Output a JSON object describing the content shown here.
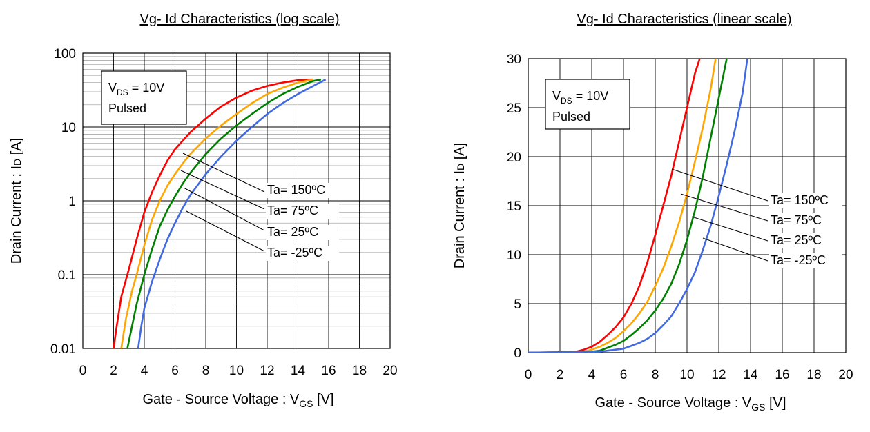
{
  "chart_data": [
    {
      "type": "line",
      "title": "Vg- Id Characteristics (log scale)",
      "xlabel": {
        "main": "Gate - Source Voltage : V",
        "sub": "GS",
        "tail": " [V]"
      },
      "ylabel": {
        "main": "Drain Current : I",
        "sub": "D",
        "tail": " [A]"
      },
      "xlim": [
        0,
        20
      ],
      "ylim": [
        0.01,
        100
      ],
      "yscale": "log",
      "grid": true,
      "x_ticks": [
        "0",
        "2",
        "4",
        "6",
        "8",
        "10",
        "12",
        "14",
        "16",
        "18",
        "20"
      ],
      "y_ticks": [
        "0.01",
        "0.1",
        "1",
        "10",
        "100"
      ],
      "annotation_box": {
        "vds_main": "V",
        "vds_sub": "DS",
        "vds_tail": " = 10V",
        "line2": "Pulsed"
      },
      "series": [
        {
          "name": "Ta= 150ºC",
          "color": "#ff0000",
          "x": [
            2.0,
            2.2,
            2.5,
            3.0,
            3.5,
            4.0,
            4.5,
            5.0,
            5.5,
            6.0,
            6.5,
            7.0,
            8.0,
            9.0,
            10.0,
            11.0,
            12.0,
            13.0,
            14.0,
            15.0
          ],
          "y": [
            0.01,
            0.02,
            0.05,
            0.12,
            0.3,
            0.7,
            1.3,
            2.2,
            3.5,
            5.0,
            6.5,
            8.5,
            13,
            19,
            25,
            31,
            36,
            40,
            43,
            44
          ]
        },
        {
          "name": "Ta= 75ºC",
          "color": "#ffa500",
          "x": [
            2.5,
            2.8,
            3.2,
            3.5,
            4.0,
            4.5,
            5.0,
            5.5,
            6.0,
            6.5,
            7.0,
            8.0,
            9.0,
            10.0,
            11.0,
            12.0,
            13.0,
            14.0,
            15.0
          ],
          "y": [
            0.01,
            0.025,
            0.06,
            0.1,
            0.25,
            0.55,
            1.0,
            1.6,
            2.3,
            3.2,
            4.3,
            7,
            10.5,
            15,
            21,
            28,
            34,
            40,
            44
          ]
        },
        {
          "name": "Ta= 25ºC",
          "color": "#008000",
          "x": [
            2.9,
            3.2,
            3.5,
            4.0,
            4.5,
            5.0,
            5.5,
            6.0,
            6.5,
            7.0,
            8.0,
            9.0,
            10.0,
            11.0,
            12.0,
            13.0,
            14.0,
            15.0,
            15.5
          ],
          "y": [
            0.01,
            0.02,
            0.04,
            0.1,
            0.22,
            0.45,
            0.75,
            1.15,
            1.7,
            2.4,
            4.3,
            7,
            10.5,
            15,
            21,
            28,
            35,
            42,
            44
          ]
        },
        {
          "name": "Ta= -25ºC",
          "color": "#4169e1",
          "x": [
            3.6,
            3.8,
            4.0,
            4.5,
            5.0,
            5.5,
            6.0,
            6.5,
            7.0,
            8.0,
            9.0,
            10.0,
            11.0,
            12.0,
            13.0,
            14.0,
            15.0,
            15.8
          ],
          "y": [
            0.01,
            0.02,
            0.035,
            0.08,
            0.16,
            0.3,
            0.5,
            0.8,
            1.2,
            2.3,
            4,
            6.5,
            10,
            15,
            21,
            28,
            36,
            44
          ]
        }
      ],
      "labels": [
        "Ta= 150ºC",
        "Ta= 75ºC",
        "Ta= 25ºC",
        "Ta= -25ºC"
      ]
    },
    {
      "type": "line",
      "title": "Vg- Id Characteristics (linear scale)",
      "xlabel": {
        "main": "Gate - Source Voltage : V",
        "sub": "GS",
        "tail": " [V]"
      },
      "ylabel": {
        "main": "Drain Current : I",
        "sub": "D",
        "tail": " [A]"
      },
      "xlim": [
        0,
        20
      ],
      "ylim": [
        0,
        30
      ],
      "yscale": "linear",
      "grid": true,
      "x_ticks": [
        "0",
        "2",
        "4",
        "6",
        "8",
        "10",
        "12",
        "14",
        "16",
        "18",
        "20"
      ],
      "y_ticks": [
        "0",
        "5",
        "10",
        "15",
        "20",
        "25",
        "30"
      ],
      "annotation_box": {
        "vds_main": "V",
        "vds_sub": "DS",
        "vds_tail": " = 10V",
        "line2": "Pulsed"
      },
      "series": [
        {
          "name": "Ta= 150ºC",
          "color": "#ff0000",
          "x": [
            0,
            2,
            3,
            3.5,
            4,
            4.5,
            5,
            5.5,
            6,
            6.5,
            7,
            7.5,
            8,
            8.5,
            9,
            9.5,
            10,
            10.5,
            10.8
          ],
          "y": [
            0,
            0,
            0.1,
            0.3,
            0.6,
            1.1,
            1.8,
            2.6,
            3.6,
            5.0,
            6.8,
            9.2,
            12,
            15,
            18,
            21.5,
            25,
            28.5,
            30
          ]
        },
        {
          "name": "Ta= 75ºC",
          "color": "#ffa500",
          "x": [
            0,
            3,
            3.5,
            4,
            4.5,
            5,
            5.5,
            6,
            6.5,
            7,
            7.5,
            8,
            8.5,
            9,
            9.5,
            10,
            10.5,
            11,
            11.5,
            11.8
          ],
          "y": [
            0,
            0,
            0.1,
            0.3,
            0.6,
            1.0,
            1.5,
            2.2,
            3.0,
            4.0,
            5.2,
            6.8,
            8.6,
            10.8,
            13.3,
            16.2,
            19.5,
            23,
            27,
            30
          ]
        },
        {
          "name": "Ta= 25ºC",
          "color": "#008000",
          "x": [
            0,
            4,
            4.5,
            5,
            5.5,
            6,
            6.5,
            7,
            7.5,
            8,
            8.5,
            9,
            9.5,
            10,
            10.5,
            11,
            11.5,
            12,
            12.5
          ],
          "y": [
            0,
            0.1,
            0.2,
            0.5,
            0.8,
            1.2,
            1.8,
            2.5,
            3.3,
            4.3,
            5.5,
            7.0,
            9.0,
            11.5,
            14.5,
            18,
            22,
            26,
            30
          ]
        },
        {
          "name": "Ta= -25ºC",
          "color": "#4169e1",
          "x": [
            0,
            4.5,
            5,
            5.5,
            6,
            6.5,
            7,
            7.5,
            8,
            8.5,
            9,
            9.5,
            10,
            10.5,
            11,
            11.5,
            12,
            12.5,
            13,
            13.5,
            13.8
          ],
          "y": [
            0,
            0.1,
            0.2,
            0.3,
            0.4,
            0.7,
            1.0,
            1.4,
            2.0,
            2.8,
            3.7,
            5.0,
            6.5,
            8.2,
            10.5,
            13,
            16,
            19.2,
            22.6,
            26.5,
            30
          ]
        }
      ],
      "labels": [
        "Ta= 150ºC",
        "Ta= 75ºC",
        "Ta= 25ºC",
        "Ta= -25ºC"
      ]
    }
  ]
}
